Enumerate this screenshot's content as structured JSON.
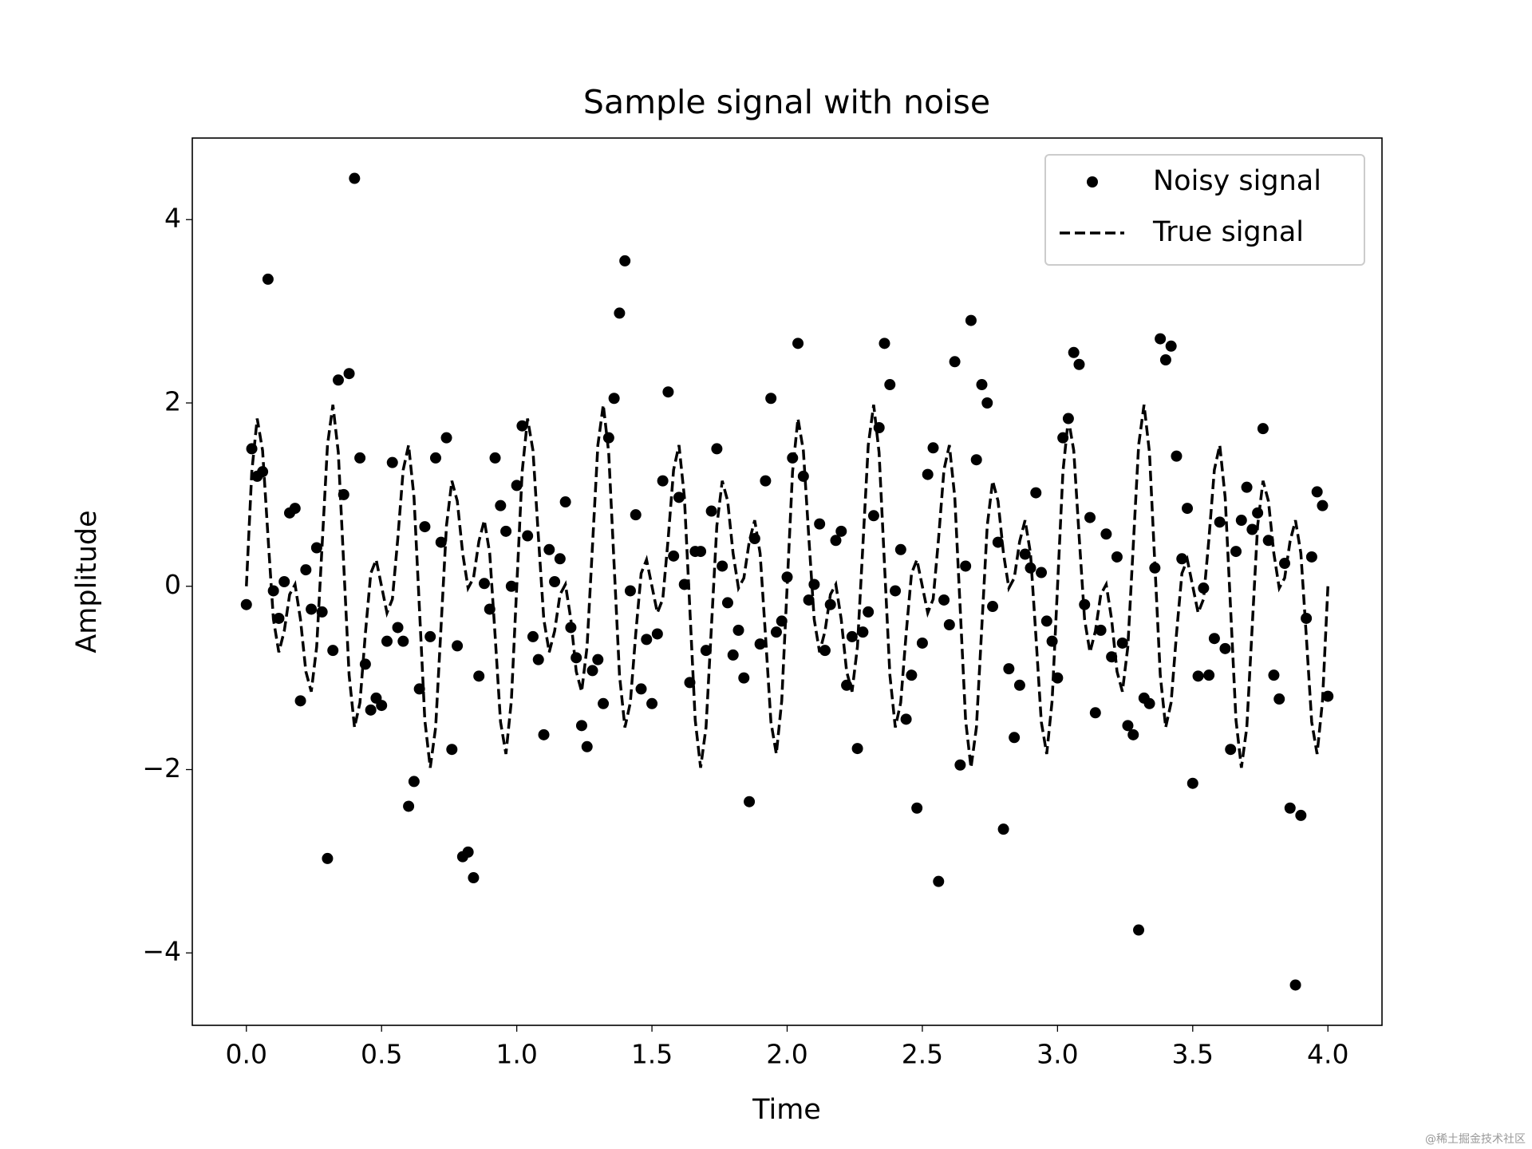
{
  "chart_data": {
    "type": "line",
    "title": "Sample signal with noise",
    "x_label": "Time",
    "y_label": "Amplitude",
    "watermark": "@稀土掘金技术社区",
    "xlim": [
      -0.2,
      4.2
    ],
    "ylim": [
      -4.79,
      4.89
    ],
    "xticks": [
      {
        "value": 0,
        "label": "0.0"
      },
      0.5,
      {
        "value": 1,
        "label": "1.0"
      },
      1.5,
      {
        "value": 2,
        "label": "2.0"
      },
      2.5,
      {
        "value": 3,
        "label": "3.0"
      },
      3.5,
      {
        "value": 4,
        "label": "4.0"
      }
    ],
    "yticks": [
      {
        "value": -4,
        "label": "−4"
      },
      {
        "value": -2,
        "label": "−2"
      },
      0,
      2,
      4
    ],
    "grid": false,
    "legend": "upper right",
    "x": [
      0,
      0.02,
      0.04,
      0.06,
      0.08,
      0.1,
      0.12,
      0.14,
      0.16,
      0.18,
      0.2,
      0.22,
      0.24,
      0.26,
      0.28,
      0.3,
      0.32,
      0.34,
      0.36,
      0.38,
      0.4,
      0.42,
      0.44,
      0.46,
      0.48,
      0.5,
      0.52,
      0.54,
      0.56,
      0.58,
      0.6,
      0.62,
      0.64,
      0.66,
      0.68,
      0.7,
      0.72,
      0.74,
      0.76,
      0.78,
      0.8,
      0.82,
      0.84,
      0.86,
      0.88,
      0.9,
      0.92,
      0.94,
      0.96,
      0.98,
      1,
      1.02,
      1.04,
      1.06,
      1.08,
      1.1,
      1.12,
      1.14,
      1.16,
      1.18,
      1.2,
      1.22,
      1.24,
      1.26,
      1.28,
      1.3,
      1.32,
      1.34,
      1.36,
      1.38,
      1.4,
      1.42,
      1.44,
      1.46,
      1.48,
      1.5,
      1.52,
      1.54,
      1.56,
      1.58,
      1.6,
      1.62,
      1.64,
      1.66,
      1.68,
      1.7,
      1.72,
      1.74,
      1.76,
      1.78,
      1.8,
      1.82,
      1.84,
      1.86,
      1.88,
      1.9,
      1.92,
      1.94,
      1.96,
      1.98,
      2,
      2.02,
      2.04,
      2.06,
      2.08,
      2.1,
      2.12,
      2.14,
      2.16,
      2.18,
      2.2,
      2.22,
      2.24,
      2.26,
      2.28,
      2.3,
      2.32,
      2.34,
      2.36,
      2.38,
      2.4,
      2.42,
      2.44,
      2.46,
      2.48,
      2.5,
      2.52,
      2.54,
      2.56,
      2.58,
      2.6,
      2.62,
      2.64,
      2.66,
      2.68,
      2.7,
      2.72,
      2.74,
      2.76,
      2.78,
      2.8,
      2.82,
      2.84,
      2.86,
      2.88,
      2.9,
      2.92,
      2.94,
      2.96,
      2.98,
      3,
      3.02,
      3.04,
      3.06,
      3.08,
      3.1,
      3.12,
      3.14,
      3.16,
      3.18,
      3.2,
      3.22,
      3.24,
      3.26,
      3.28,
      3.3,
      3.32,
      3.34,
      3.36,
      3.38,
      3.4,
      3.42,
      3.44,
      3.46,
      3.48,
      3.5,
      3.52,
      3.54,
      3.56,
      3.58,
      3.6,
      3.62,
      3.64,
      3.66,
      3.68,
      3.7,
      3.72,
      3.74,
      3.76,
      3.78,
      3.8,
      3.82,
      3.84,
      3.86,
      3.88,
      3.9,
      3.92,
      3.94,
      3.96,
      3.98,
      4
    ],
    "series": [
      {
        "name": "Noisy signal",
        "color": "#000000",
        "marker": "o",
        "linestyle": "none",
        "values": [
          -0.2,
          1.5,
          1.2,
          1.25,
          3.35,
          -0.05,
          -0.35,
          0.05,
          0.8,
          0.85,
          -1.25,
          0.18,
          -0.25,
          0.42,
          -0.28,
          -2.97,
          -0.7,
          2.25,
          1.0,
          2.32,
          4.45,
          1.4,
          -0.85,
          -1.35,
          -1.22,
          -1.3,
          -0.6,
          1.35,
          -0.45,
          -0.6,
          -2.4,
          -2.13,
          -1.12,
          0.65,
          -0.55,
          1.4,
          0.48,
          1.62,
          -1.78,
          -0.65,
          -2.95,
          -2.9,
          -3.18,
          -0.98,
          0.03,
          -0.25,
          1.4,
          0.88,
          0.6,
          0.0,
          1.1,
          1.75,
          0.55,
          -0.55,
          -0.8,
          -1.62,
          0.4,
          0.05,
          0.3,
          0.92,
          -0.45,
          -0.78,
          -1.52,
          -1.75,
          -0.92,
          -0.8,
          -1.28,
          1.62,
          2.05,
          2.98,
          3.55,
          -0.05,
          0.78,
          -1.12,
          -0.58,
          -1.28,
          -0.52,
          1.15,
          2.12,
          0.33,
          0.97,
          0.02,
          -1.05,
          0.38,
          0.38,
          -0.7,
          0.82,
          1.5,
          0.22,
          -0.18,
          -0.75,
          -0.48,
          -1.0,
          -2.35,
          0.52,
          -0.63,
          1.15,
          2.05,
          -0.5,
          -0.38,
          0.1,
          1.4,
          2.65,
          1.2,
          -0.15,
          0.02,
          0.68,
          -0.7,
          -0.2,
          0.5,
          0.6,
          -1.08,
          -0.55,
          -1.77,
          -0.5,
          -0.28,
          0.77,
          1.73,
          2.65,
          2.2,
          -0.05,
          0.4,
          -1.45,
          -0.97,
          -2.42,
          -0.62,
          1.22,
          1.51,
          -3.22,
          -0.15,
          -0.42,
          2.45,
          -1.95,
          0.22,
          2.9,
          1.38,
          2.2,
          2.0,
          -0.22,
          0.48,
          -2.65,
          -0.9,
          -1.65,
          -1.08,
          0.35,
          0.2,
          1.02,
          0.15,
          -0.38,
          -0.6,
          -1.0,
          1.62,
          1.83,
          2.55,
          2.42,
          -0.2,
          0.75,
          -1.38,
          -0.48,
          0.57,
          -0.77,
          0.32,
          -0.62,
          -1.52,
          -1.62,
          -3.75,
          -1.22,
          -1.28,
          0.2,
          2.7,
          2.47,
          2.62,
          1.42,
          0.3,
          0.85,
          -2.15,
          -0.98,
          -0.02,
          -0.97,
          -0.57,
          0.7,
          -0.68,
          -1.78,
          0.38,
          0.72,
          1.08,
          0.62,
          0.8,
          1.72,
          0.5,
          -0.97,
          -1.23,
          0.25,
          -2.42,
          -4.35,
          -2.5,
          -0.35,
          0.32,
          1.03,
          0.88,
          -1.2
        ]
      },
      {
        "name": "True signal",
        "color": "#000000",
        "marker": "none",
        "linestyle": "dashed",
        "values": [
          0,
          1.25,
          1.83,
          1.48,
          0.54,
          -0.36,
          -0.72,
          -0.49,
          -0.09,
          0.02,
          -0.36,
          -0.93,
          -1.15,
          -0.66,
          0.44,
          1.54,
          1.98,
          1.46,
          0.24,
          -0.97,
          -1.54,
          -1.27,
          -0.52,
          0.14,
          0.29,
          0,
          -0.29,
          -0.14,
          0.52,
          1.27,
          1.54,
          0.97,
          -0.24,
          -1.46,
          -1.98,
          -1.54,
          -0.44,
          0.66,
          1.15,
          0.93,
          0.36,
          -0.02,
          0.09,
          0.49,
          0.72,
          0.36,
          -0.54,
          -1.48,
          -1.83,
          -1.25,
          0,
          1.25,
          1.83,
          1.48,
          0.54,
          -0.36,
          -0.72,
          -0.49,
          -0.09,
          0.02,
          -0.36,
          -0.93,
          -1.15,
          -0.66,
          0.44,
          1.54,
          1.98,
          1.46,
          0.24,
          -0.97,
          -1.54,
          -1.27,
          -0.52,
          0.14,
          0.29,
          0,
          -0.29,
          -0.14,
          0.52,
          1.27,
          1.54,
          0.97,
          -0.24,
          -1.46,
          -1.98,
          -1.54,
          -0.44,
          0.66,
          1.15,
          0.93,
          0.36,
          -0.02,
          0.09,
          0.49,
          0.72,
          0.36,
          -0.54,
          -1.48,
          -1.83,
          -1.25,
          0,
          1.25,
          1.83,
          1.48,
          0.54,
          -0.36,
          -0.72,
          -0.49,
          -0.09,
          0.02,
          -0.36,
          -0.93,
          -1.15,
          -0.66,
          0.44,
          1.54,
          1.98,
          1.46,
          0.24,
          -0.97,
          -1.54,
          -1.27,
          -0.52,
          0.14,
          0.29,
          0,
          -0.29,
          -0.14,
          0.52,
          1.27,
          1.54,
          0.97,
          -0.24,
          -1.46,
          -1.98,
          -1.54,
          -0.44,
          0.66,
          1.15,
          0.93,
          0.36,
          -0.02,
          0.09,
          0.49,
          0.72,
          0.36,
          -0.54,
          -1.48,
          -1.83,
          -1.25,
          0,
          1.25,
          1.83,
          1.48,
          0.54,
          -0.36,
          -0.72,
          -0.49,
          -0.09,
          0.02,
          -0.36,
          -0.93,
          -1.15,
          -0.66,
          0.44,
          1.54,
          1.98,
          1.46,
          0.24,
          -0.97,
          -1.54,
          -1.27,
          -0.52,
          0.14,
          0.29,
          0,
          -0.29,
          -0.14,
          0.52,
          1.27,
          1.54,
          0.97,
          -0.24,
          -1.46,
          -1.98,
          -1.54,
          -0.44,
          0.66,
          1.15,
          0.93,
          0.36,
          -0.02,
          0.09,
          0.49,
          0.72,
          0.36,
          -0.54,
          -1.48,
          -1.83,
          -1.25,
          0
        ]
      }
    ]
  }
}
